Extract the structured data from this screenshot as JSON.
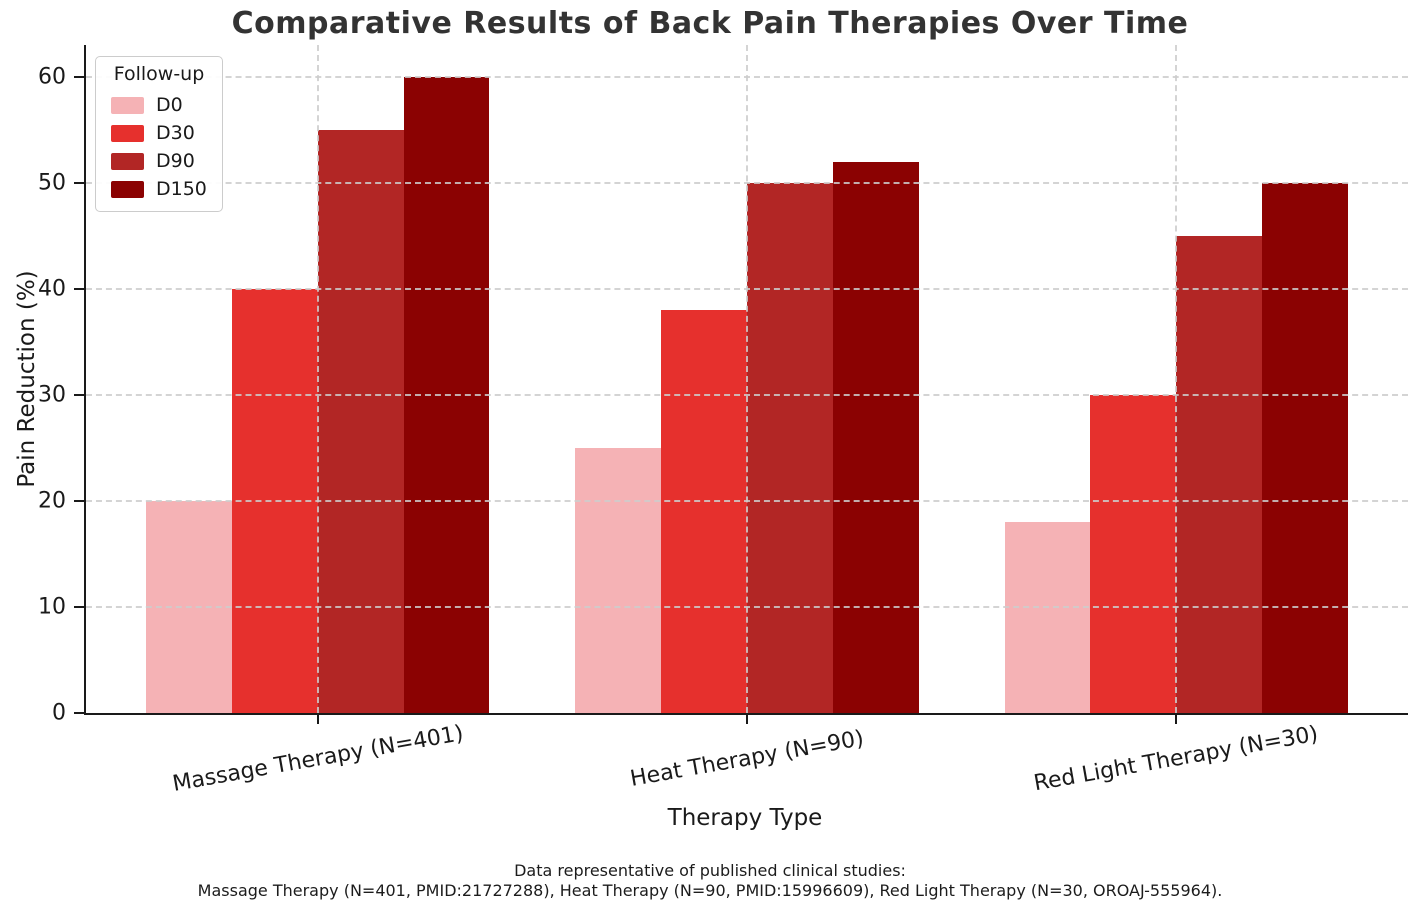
{
  "chart_data": {
    "type": "bar",
    "title": "Comparative Results of Back Pain Therapies Over Time",
    "xlabel": "Therapy Type",
    "ylabel": "Pain Reduction (%)",
    "categories": [
      "Massage Therapy (N=401)",
      "Heat Therapy (N=90)",
      "Red Light Therapy (N=30)"
    ],
    "series": [
      {
        "name": "D0",
        "color": "#f5b2b5",
        "values": [
          20,
          25,
          18
        ]
      },
      {
        "name": "D30",
        "color": "#e6302d",
        "values": [
          40,
          38,
          30
        ]
      },
      {
        "name": "D90",
        "color": "#b22625",
        "values": [
          55,
          50,
          45
        ]
      },
      {
        "name": "D150",
        "color": "#8b0202",
        "values": [
          60,
          52,
          50
        ]
      }
    ],
    "yticks": [
      0,
      10,
      20,
      30,
      40,
      50,
      60
    ],
    "ylim": [
      0,
      63
    ],
    "grid": true,
    "grid_style": "dashed",
    "legend_title": "Follow-up",
    "legend_position": "upper left",
    "x_tick_rotation": 10
  },
  "footer": {
    "line1": "Data representative of published clinical studies:",
    "line2": "Massage Therapy (N=401, PMID:21727288), Heat Therapy (N=90, PMID:15996609), Red Light Therapy (N=30, OROAJ-555964)."
  }
}
